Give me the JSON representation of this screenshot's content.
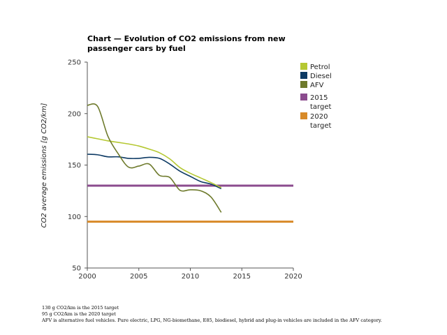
{
  "chart_data": {
    "type": "line",
    "title": "Chart — Evolution of CO2 emissions from new passenger cars by fuel",
    "ylabel": "CO2 average emissions [g CO2/km]",
    "xlabel": "",
    "xlim": [
      2000,
      2020
    ],
    "ylim": [
      50,
      250
    ],
    "xticks": [
      2000,
      2005,
      2010,
      2015,
      2020
    ],
    "yticks": [
      50,
      100,
      150,
      200,
      250
    ],
    "grid": false,
    "legend_position": "right",
    "series": [
      {
        "name": "Petrol",
        "color": "#b5c832",
        "x": [
          2000,
          2001,
          2002,
          2003,
          2004,
          2005,
          2006,
          2007,
          2008,
          2009,
          2010,
          2011,
          2012,
          2013
        ],
        "values": [
          177.5,
          175.5,
          173.5,
          172,
          170.5,
          168.5,
          165.5,
          162,
          156,
          147.5,
          142,
          137.5,
          133,
          128
        ]
      },
      {
        "name": "Diesel",
        "color": "#0d3a64",
        "x": [
          2000,
          2001,
          2002,
          2003,
          2004,
          2005,
          2006,
          2007,
          2008,
          2009,
          2010,
          2011,
          2012,
          2013
        ],
        "values": [
          160.5,
          160,
          158,
          158,
          156.5,
          156.5,
          157.5,
          156.5,
          151,
          144,
          139,
          134,
          131.5,
          127
        ]
      },
      {
        "name": "AFV",
        "color": "#6e7a2c",
        "x": [
          2000,
          2001,
          2002,
          2003,
          2004,
          2005,
          2006,
          2007,
          2008,
          2009,
          2010,
          2011,
          2012,
          2013
        ],
        "values": [
          208,
          207,
          178,
          161,
          148,
          149,
          151,
          140,
          138,
          125.5,
          126,
          125,
          119,
          104
        ]
      },
      {
        "name": "2015 target",
        "color": "#8b4b8e",
        "x": [
          2000,
          2020
        ],
        "values": [
          130,
          130
        ]
      },
      {
        "name": "2020 target",
        "color": "#d88a28",
        "x": [
          2000,
          2020
        ],
        "values": [
          95,
          95
        ]
      }
    ]
  },
  "notes": [
    "130 g CO2/km is the 2015 target",
    "95 g CO2/km is the 2020 target",
    "AFV is alternative fuel vehicles. Pure electric, LPG, NG-biomethane, E85, biodiesel, hybrid and plug-in vehicles are included in the AFV category."
  ]
}
